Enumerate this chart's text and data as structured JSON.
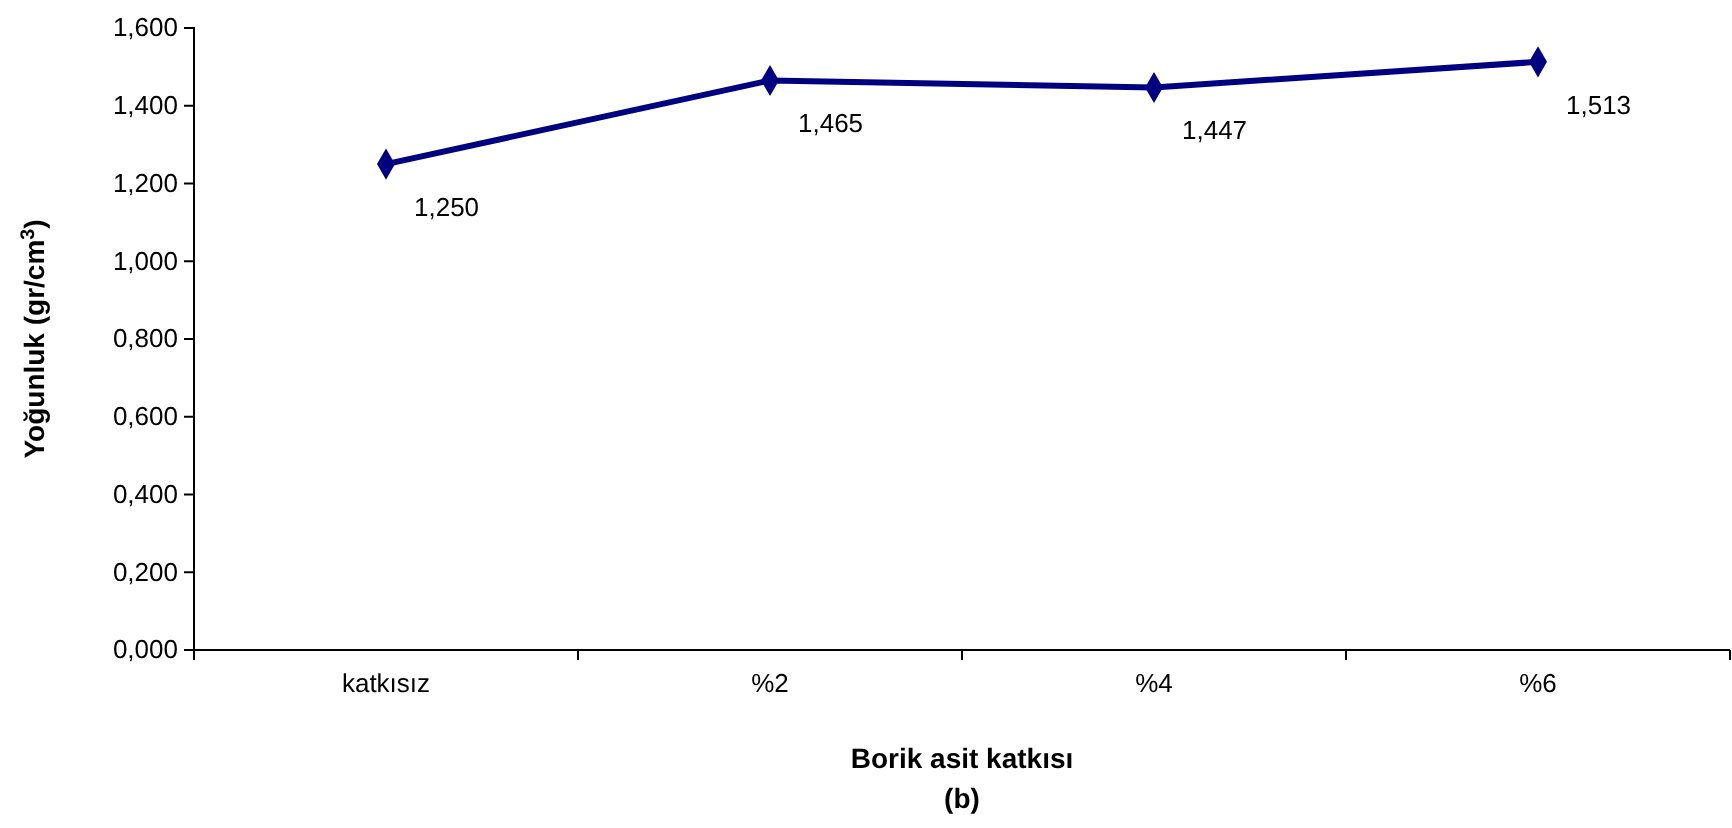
{
  "chart_data": {
    "type": "line",
    "xlabel": "Borik asit katkısı",
    "ylabel": "Yoğunluk (gr/cm$^{3}$)",
    "annotations": [
      "(b)"
    ],
    "categories": [
      "katkısız",
      "%2",
      "%4",
      "%6"
    ],
    "series": [
      {
        "color": "#000080",
        "values": [
          1.25,
          1.465,
          1.447,
          1.513
        ],
        "value_labels": [
          "1,250",
          "1,465",
          "1,447",
          "1,513"
        ]
      }
    ],
    "ylim": [
      0,
      1.6
    ],
    "yticks": [
      {
        "value": 0,
        "label": "0,000"
      },
      {
        "value": 0.2,
        "label": "0,200"
      },
      {
        "value": 0.4,
        "label": "0,400"
      },
      {
        "value": 0.6,
        "label": "0,600"
      },
      {
        "value": 0.8,
        "label": "0,800"
      },
      {
        "value": 1.0,
        "label": "1,000"
      },
      {
        "value": 1.2,
        "label": "1,200"
      },
      {
        "value": 1.4,
        "label": "1,400"
      },
      {
        "value": 1.6,
        "label": "1,600"
      }
    ],
    "grid": false,
    "marker": "diamond",
    "line_style": "solid"
  }
}
